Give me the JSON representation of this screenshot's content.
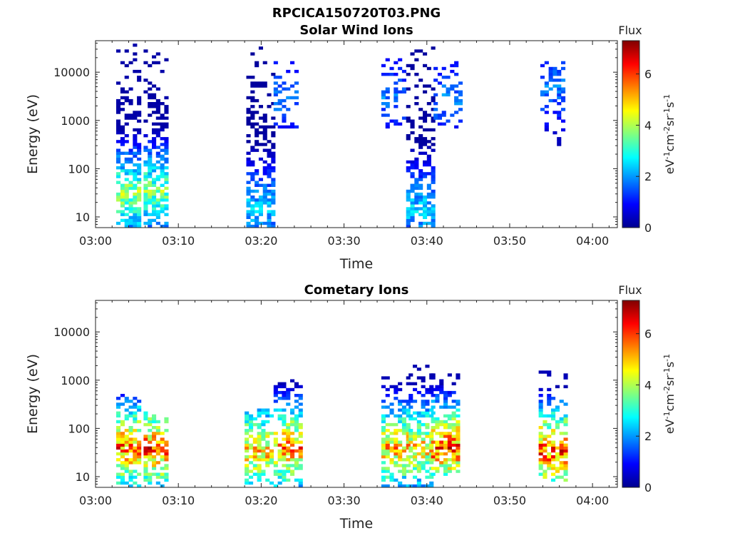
{
  "figure_title": "RPCICA150720T03.PNG",
  "colors": {
    "colormap": [
      "#00008f",
      "#0000ff",
      "#0080ff",
      "#00ffff",
      "#80ff80",
      "#ffff00",
      "#ff8000",
      "#ff0000",
      "#800000"
    ],
    "axes": "#222222",
    "background": "#ffffff"
  },
  "chart_data": [
    {
      "type": "heatmap",
      "title": "Solar Wind Ions",
      "xlabel": "Time",
      "ylabel": "Energy (eV)",
      "xticks": [
        "03:00",
        "03:10",
        "03:20",
        "03:30",
        "03:40",
        "03:50",
        "04:00"
      ],
      "yticks": [
        "10",
        "100",
        "1000",
        "10000"
      ],
      "xlim_minutes": [
        0,
        63
      ],
      "ylim": [
        6,
        45000
      ],
      "yscale": "log",
      "colorbar": {
        "label": "Flux",
        "unit": "eV-1cm-2sr-1s-1",
        "ticks": [
          "0",
          "2",
          "4",
          "6"
        ],
        "range": [
          0,
          7.3
        ]
      },
      "clusters": [
        {
          "t0": 2.5,
          "t1": 5.2,
          "elo": 6,
          "ehi": 40000,
          "peak": 4.8,
          "density": 0.75,
          "core_e": 30
        },
        {
          "t0": 5.8,
          "t1": 8.7,
          "elo": 6,
          "ehi": 35000,
          "peak": 4.5,
          "density": 0.75,
          "core_e": 35
        },
        {
          "t0": 18.2,
          "t1": 21.3,
          "elo": 6,
          "ehi": 35000,
          "peak": 3.0,
          "density": 0.7,
          "core_e": 15
        },
        {
          "t0": 21.5,
          "t1": 24.5,
          "elo": 600,
          "ehi": 20000,
          "peak": 2.3,
          "density": 0.35,
          "core_e": 3000
        },
        {
          "t0": 34.5,
          "t1": 37.5,
          "elo": 700,
          "ehi": 20000,
          "peak": 2.2,
          "density": 0.35,
          "core_e": 3000
        },
        {
          "t0": 37.5,
          "t1": 40.8,
          "elo": 6,
          "ehi": 35000,
          "peak": 3.0,
          "density": 0.75,
          "core_e": 15
        },
        {
          "t0": 40.8,
          "t1": 44.0,
          "elo": 700,
          "ehi": 20000,
          "peak": 2.3,
          "density": 0.35,
          "core_e": 3000
        },
        {
          "t0": 53.7,
          "t1": 56.7,
          "elo": 300,
          "ehi": 18000,
          "peak": 2.3,
          "density": 0.45,
          "core_e": 5000
        }
      ]
    },
    {
      "type": "heatmap",
      "title": "Cometary Ions",
      "xlabel": "Time",
      "ylabel": "Energy (eV)",
      "xticks": [
        "03:00",
        "03:10",
        "03:20",
        "03:30",
        "03:40",
        "03:50",
        "04:00"
      ],
      "yticks": [
        "10",
        "100",
        "1000",
        "10000"
      ],
      "xlim_minutes": [
        0,
        63
      ],
      "ylim": [
        6,
        45000
      ],
      "yscale": "log",
      "colorbar": {
        "label": "Flux",
        "unit": "eV-1cm-2sr-1s-1",
        "ticks": [
          "0",
          "2",
          "4",
          "6"
        ],
        "range": [
          0,
          7.3
        ]
      },
      "clusters": [
        {
          "t0": 2.5,
          "t1": 5.5,
          "elo": 6,
          "ehi": 550,
          "peak": 7.0,
          "density": 0.8,
          "core_e": 40
        },
        {
          "t0": 5.8,
          "t1": 8.8,
          "elo": 6,
          "ehi": 220,
          "peak": 7.2,
          "density": 0.8,
          "core_e": 40
        },
        {
          "t0": 18.0,
          "t1": 21.5,
          "elo": 6,
          "ehi": 300,
          "peak": 6.3,
          "density": 0.7,
          "core_e": 35
        },
        {
          "t0": 21.5,
          "t1": 24.8,
          "elo": 6,
          "ehi": 1000,
          "peak": 6.8,
          "density": 0.7,
          "core_e": 40
        },
        {
          "t0": 34.5,
          "t1": 37.8,
          "elo": 6,
          "ehi": 1200,
          "peak": 6.3,
          "density": 0.7,
          "core_e": 40
        },
        {
          "t0": 37.8,
          "t1": 40.5,
          "elo": 6,
          "ehi": 2200,
          "peak": 6.0,
          "density": 0.7,
          "core_e": 40
        },
        {
          "t0": 40.5,
          "t1": 44.0,
          "elo": 10,
          "ehi": 1300,
          "peak": 7.3,
          "density": 0.75,
          "core_e": 40
        },
        {
          "t0": 53.5,
          "t1": 56.8,
          "elo": 8,
          "ehi": 1500,
          "peak": 7.3,
          "density": 0.7,
          "core_e": 35
        }
      ]
    }
  ]
}
